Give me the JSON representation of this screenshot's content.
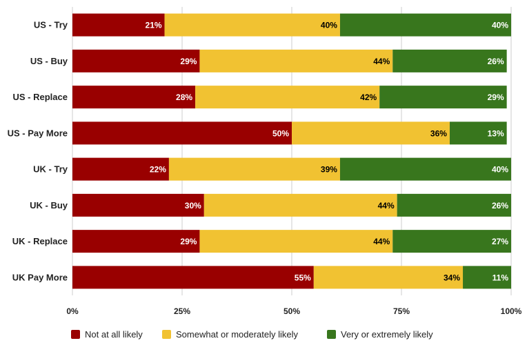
{
  "chart_data": {
    "type": "bar",
    "orientation": "horizontal",
    "stacked": true,
    "categories": [
      "US - Try",
      "US - Buy",
      "US - Replace",
      "US - Pay More",
      "UK - Try",
      "UK - Buy",
      "UK - Replace",
      "UK Pay More"
    ],
    "series": [
      {
        "name": "Not at all likely",
        "color": "#990000",
        "label_color": "#ffffff",
        "values": [
          21,
          29,
          28,
          50,
          22,
          30,
          29,
          55
        ]
      },
      {
        "name": "Somewhat or moderately likely",
        "color": "#f1c232",
        "label_color": "#000000",
        "values": [
          40,
          44,
          42,
          36,
          39,
          44,
          44,
          34
        ]
      },
      {
        "name": "Very or extremely likely",
        "color": "#38761d",
        "label_color": "#ffffff",
        "values": [
          40,
          26,
          29,
          13,
          40,
          26,
          27,
          11
        ]
      }
    ],
    "xlim": [
      0,
      100
    ],
    "x_ticks": [
      "0%",
      "25%",
      "50%",
      "75%",
      "100%"
    ],
    "grid": true,
    "legend_position": "bottom"
  }
}
